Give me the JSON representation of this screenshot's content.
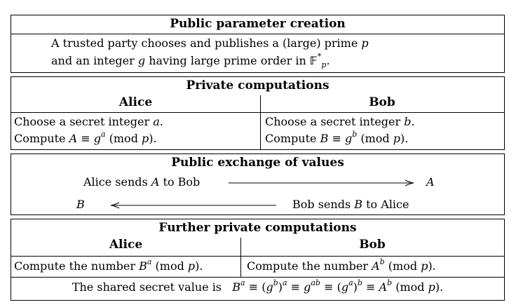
{
  "section1": {
    "title": "Public parameter creation",
    "line1_text": "A trusted party chooses and publishes a (large) prime",
    "line1_var": "p",
    "line2_prefix": "and an integer",
    "line2_var": "g",
    "line2_suffix": "having large prime order in"
  },
  "section2": {
    "title": "Private computations",
    "alice_header": "Alice",
    "bob_header": "Bob",
    "alice_choose": "Choose a secret integer",
    "alice_secret": "a",
    "bob_choose": "Choose a secret integer",
    "bob_secret": "b",
    "compute_label": "Compute",
    "alice_value": "A",
    "bob_value": "B",
    "base": "g",
    "mod_text": "(mod",
    "mod_var": "p"
  },
  "section3": {
    "title": "Public exchange of values",
    "alice_sends_prefix": "Alice sends",
    "alice_sends_var": "A",
    "alice_sends_suffix": "to Bob",
    "arrow_right_target": "A",
    "arrow_left_target": "B",
    "bob_sends_prefix": "Bob sends",
    "bob_sends_var": "B",
    "bob_sends_suffix": "to Alice"
  },
  "section4": {
    "title": "Further private computations",
    "alice_header": "Alice",
    "bob_header": "Bob",
    "compute_number": "Compute the number",
    "shared_secret_label": "The shared secret value is"
  }
}
